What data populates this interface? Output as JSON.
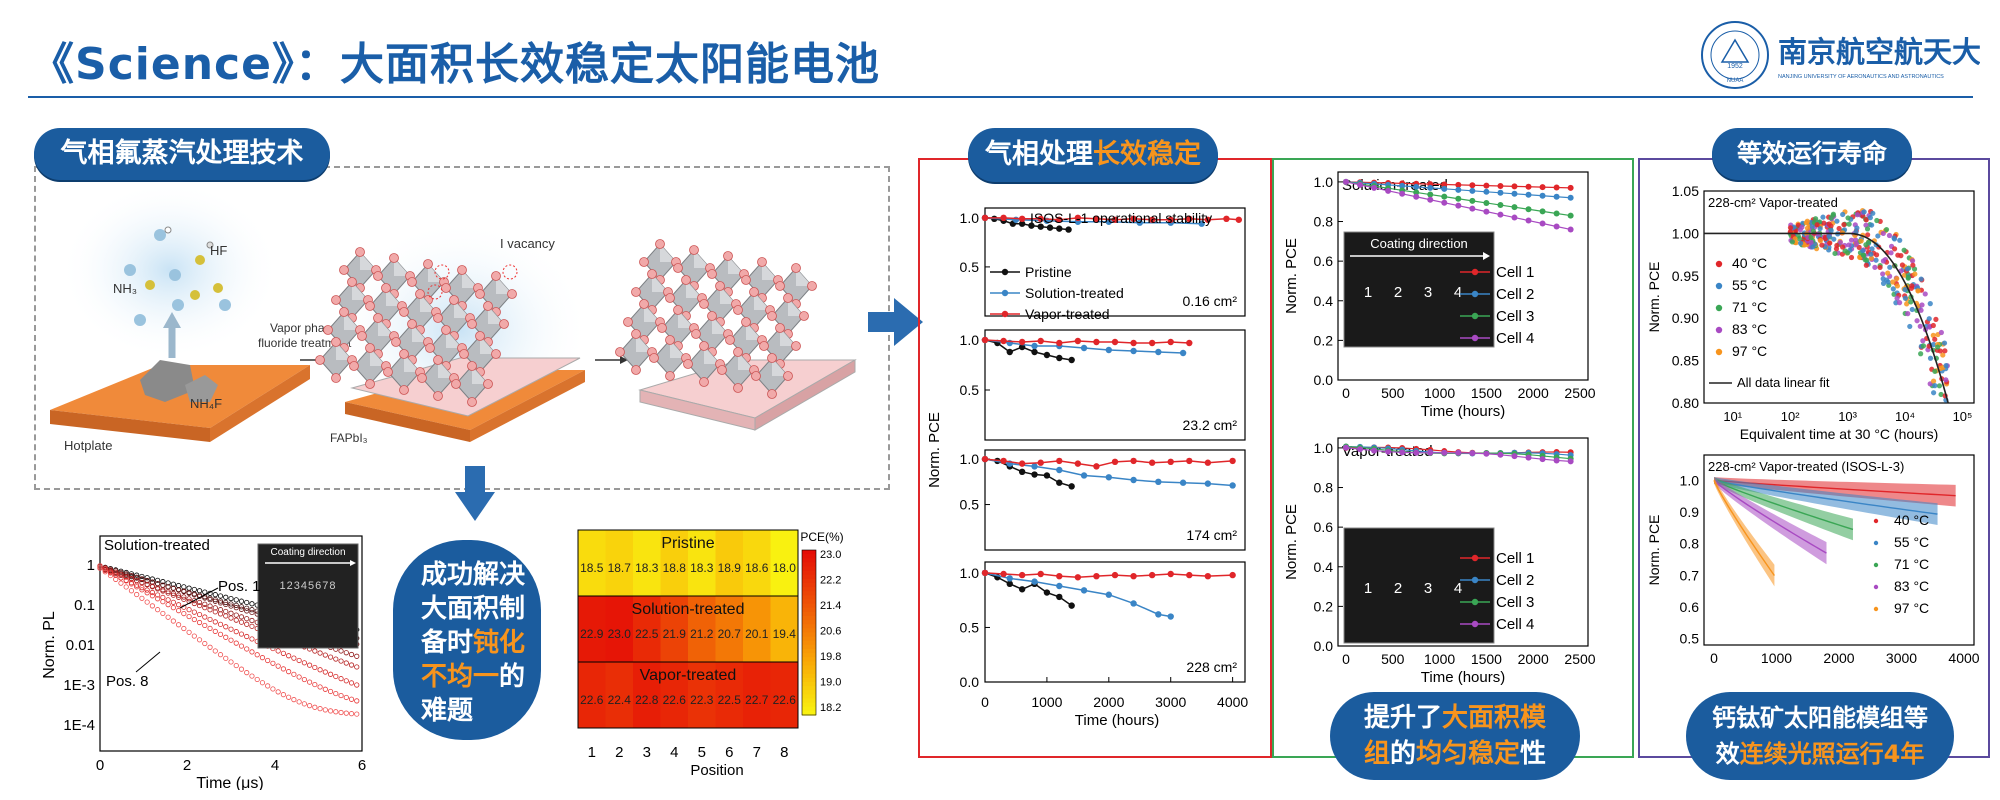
{
  "title": "《Science》：大面积长效稳定太阳能电池",
  "logo": {
    "cn": "南京航空航天大學",
    "en": "NANJING UNIVERSITY OF AERONAUTICS AND ASTRONAUTICS",
    "seal_year": "1952",
    "seal_text": "NUAA"
  },
  "section1": {
    "pill": "气相氟蒸汽处理技术",
    "labels": {
      "hf": "HF",
      "nh3": "NH₃",
      "nh4f": "NH₄F",
      "hotplate": "Hotplate",
      "process1": "Vapor phase",
      "process2": "fluoride treatment",
      "vacancy": "I vacancy",
      "fapbi3": "FAPbI₃"
    }
  },
  "pl_chart": {
    "label": "Solution-treated",
    "ylabel": "Norm. PL",
    "xlabel": "Time (μs)",
    "yticks": [
      "1",
      "0.1",
      "0.01",
      "1E-3",
      "1E-4"
    ],
    "xticks": [
      "0",
      "2",
      "4",
      "6"
    ],
    "pos1": "Pos. 1",
    "pos8": "Pos. 8",
    "inset_label": "Coating direction",
    "inset_numbers": "12345678",
    "chart_data": {
      "type": "scatter",
      "x_range": [
        0,
        6
      ],
      "y_log": true,
      "series": [
        {
          "name": "Pos. 1",
          "tau": 1.6
        },
        {
          "name": "Pos. 8",
          "tau": 0.55
        }
      ]
    }
  },
  "callout1": {
    "line1": "成功解决",
    "line2": "大面积制",
    "line3a": "备时",
    "line3b": "钝化",
    "line4a": "不均一",
    "line4b": "的",
    "line5": "难题"
  },
  "heatmap": {
    "colorbar_title": "PCE(%)",
    "colorbar_ticks": [
      "23.0",
      "22.2",
      "21.4",
      "20.6",
      "19.8",
      "19.0",
      "18.2"
    ],
    "xlabel": "Position",
    "xticks": [
      "1",
      "2",
      "3",
      "4",
      "5",
      "6",
      "7",
      "8"
    ],
    "chart_data": {
      "type": "heatmap",
      "rows": [
        {
          "name": "Pristine",
          "values": [
            "18.5",
            "18.7",
            "18.3",
            "18.8",
            "18.3",
            "18.9",
            "18.6",
            "18.0"
          ]
        },
        {
          "name": "Solution-treated",
          "values": [
            "22.9",
            "23.0",
            "22.5",
            "21.9",
            "21.2",
            "20.7",
            "20.1",
            "19.4"
          ]
        },
        {
          "name": "Vapor-treated",
          "values": [
            "22.6",
            "22.4",
            "22.8",
            "22.6",
            "22.3",
            "22.5",
            "22.7",
            "22.6"
          ]
        }
      ],
      "range": [
        18.0,
        23.2
      ]
    }
  },
  "panel_red": {
    "pill_a": "气相处理",
    "pill_b": "长效稳定",
    "chart_title": "ISOS-L-1 operational stability",
    "ylabel": "Norm. PCE",
    "xlabel": "Time (hours)",
    "xticks": [
      "0",
      "1000",
      "2000",
      "3000",
      "4000"
    ],
    "yticks": [
      "1.0",
      "0.5"
    ],
    "ytick0": "0.0",
    "legend": [
      "Pristine",
      "Solution-treated",
      "Vapor-treated"
    ],
    "areas": [
      "0.16 cm²",
      "23.2 cm²",
      "174 cm²",
      "228 cm²"
    ]
  },
  "panel_green": {
    "top_label": "Solution-treated",
    "bottom_label": "Vapor-treated",
    "ylabel": "Norm. PCE",
    "xlabel": "Time (hours)",
    "xticks": [
      "0",
      "500",
      "1000",
      "1500",
      "2000",
      "2500"
    ],
    "yticks": [
      "1.0",
      "0.8",
      "0.6",
      "0.4",
      "0.2",
      "0.0"
    ],
    "coating": "Coating direction",
    "cells_nums": [
      "1",
      "2",
      "3",
      "4"
    ],
    "legend": [
      "Cell 1",
      "Cell 2",
      "Cell 3",
      "Cell 4"
    ],
    "callout_a": "提升了",
    "callout_b": "大面积模",
    "callout_c": "组",
    "callout_d": "的",
    "callout_e": "均匀稳定",
    "callout_f": "性"
  },
  "panel_purple": {
    "pill": "等效运行寿命",
    "top_label": "228-cm² Vapor-treated",
    "top_ylabel": "Norm. PCE",
    "top_xlabel": "Equivalent time at 30 °C (hours)",
    "top_yticks": [
      "1.05",
      "1.00",
      "0.95",
      "0.90",
      "0.85",
      "0.80"
    ],
    "top_xticks": [
      "10¹",
      "10²",
      "10³",
      "10⁴",
      "10⁵"
    ],
    "temps": [
      "40 °C",
      "55 °C",
      "71 °C",
      "83 °C",
      "97 °C"
    ],
    "fit_label": "All data linear fit",
    "bottom_label": "228-cm² Vapor-treated (ISOS-L-3)",
    "bottom_ylabel": "Norm. PCE",
    "bottom_yticks": [
      "1.0",
      "0.9",
      "0.8",
      "0.7",
      "0.6",
      "0.5"
    ],
    "bottom_xticks": [
      "0",
      "1000",
      "2000",
      "3000",
      "4000"
    ],
    "callout_a": "钙钛矿太阳能模组等",
    "callout_b": "效",
    "callout_c": "连续光照运行4年"
  },
  "colors": {
    "blue": "#1b5c9e",
    "orange": "#f7941d",
    "red": "#e0262a",
    "green": "#3aa655",
    "purple": "#5b4a9e"
  }
}
